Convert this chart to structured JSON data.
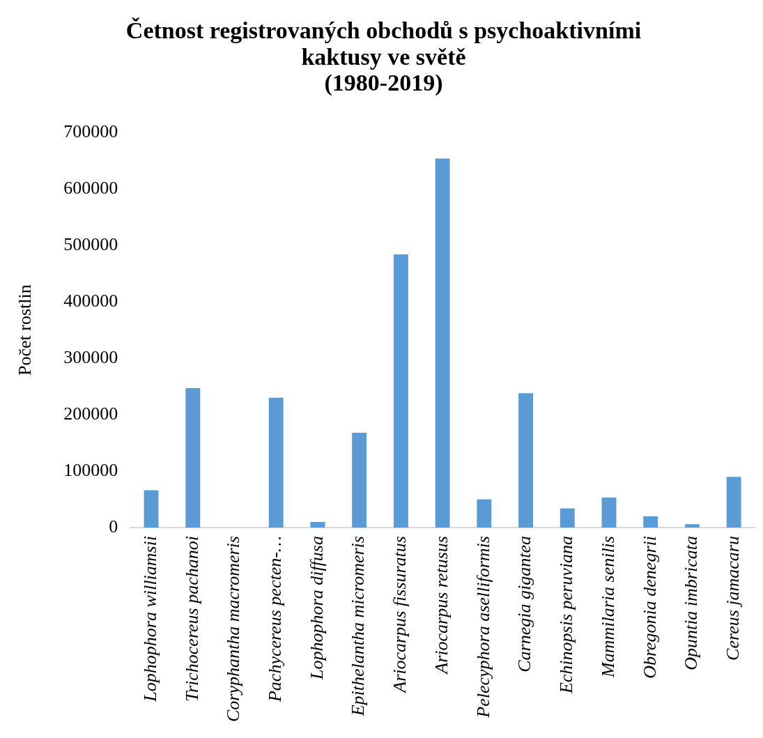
{
  "chart_data": {
    "type": "bar",
    "title": [
      "Četnost registrovaných obchodů s psychoaktivními",
      "kaktusy ve světě",
      "(1980-2019)"
    ],
    "ylabel": "Počet rostlin",
    "categories": [
      "Lophophora williamsii",
      "Trichocereus pachanoi",
      "Coryphantha macromeris",
      "Pachycereus pecten-…",
      "Lophophora diffusa",
      "Epithelantha micromeris",
      "Ariocarpus fissuratus",
      "Ariocarpus retusus",
      "Pelecyphora aselliformis",
      "Carnegia gigantea",
      "Echinopsis peruviana",
      "Mammilaria senilis",
      "Obregonia denegrii",
      "Opuntia imbricata",
      "Cereus jamacaru"
    ],
    "values": [
      66000,
      247000,
      0,
      230000,
      10000,
      168000,
      484000,
      654000,
      50000,
      238000,
      34000,
      53000,
      20000,
      6000,
      90000
    ],
    "color": "#5b9bd5",
    "ylim": [
      0,
      700000
    ],
    "yticks": [
      0,
      100000,
      200000,
      300000,
      400000,
      500000,
      600000,
      700000
    ],
    "grid": false,
    "legend": false
  }
}
